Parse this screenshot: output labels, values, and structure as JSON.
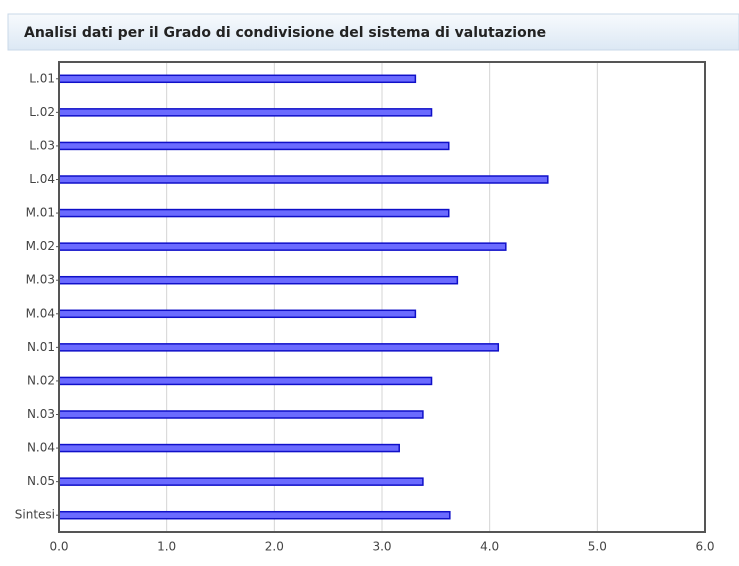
{
  "chart_data": {
    "type": "bar",
    "orientation": "horizontal",
    "title": "Analisi dati per il Grado di condivisione del sistema di valutazione",
    "categories": [
      "L.01",
      "L.02",
      "L.03",
      "L.04",
      "M.01",
      "M.02",
      "M.03",
      "M.04",
      "N.01",
      "N.02",
      "N.03",
      "N.04",
      "N.05",
      "Sintesi"
    ],
    "values": [
      3.31,
      3.46,
      3.62,
      4.54,
      3.62,
      4.15,
      3.7,
      3.31,
      4.08,
      3.46,
      3.38,
      3.16,
      3.38,
      3.63
    ],
    "color": "#6b6bff",
    "xlim": [
      0,
      6
    ],
    "xticks": [
      {
        "value": 0,
        "label": "0.0"
      },
      {
        "value": 1,
        "label": "1.0"
      },
      {
        "value": 2,
        "label": "2.0"
      },
      {
        "value": 3,
        "label": "3.0"
      },
      {
        "value": 4,
        "label": "4.0"
      },
      {
        "value": 5,
        "label": "5.0"
      },
      {
        "value": 6,
        "label": "6.0"
      }
    ],
    "grid": true
  }
}
